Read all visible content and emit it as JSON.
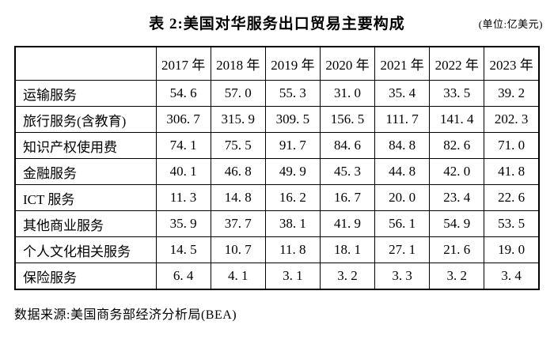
{
  "title": "表 2:美国对华服务出口贸易主要构成",
  "unit": "(单位:亿美元)",
  "source": "数据来源:美国商务部经济分析局(BEA)",
  "chart_data": {
    "type": "table",
    "title": "表 2:美国对华服务出口贸易主要构成",
    "unit_label": "(单位:亿美元)",
    "source_note": "数据来源:美国商务部经济分析局(BEA)",
    "columns": [
      "",
      "2017 年",
      "2018 年",
      "2019 年",
      "2020 年",
      "2021 年",
      "2022 年",
      "2023 年"
    ],
    "rows": [
      {
        "label": "运输服务",
        "values": [
          "54.6",
          "57.0",
          "55.3",
          "31.0",
          "35.4",
          "33.5",
          "39.2"
        ]
      },
      {
        "label": "旅行服务(含教育)",
        "values": [
          "306.7",
          "315.9",
          "309.5",
          "156.5",
          "111.7",
          "141.4",
          "202.3"
        ]
      },
      {
        "label": "知识产权使用费",
        "values": [
          "74.1",
          "75.5",
          "91.7",
          "84.6",
          "84.8",
          "82.6",
          "71.0"
        ]
      },
      {
        "label": "金融服务",
        "values": [
          "40.1",
          "46.8",
          "49.9",
          "45.3",
          "44.8",
          "42.0",
          "41.8"
        ]
      },
      {
        "label": "ICT 服务",
        "values": [
          "11.3",
          "14.8",
          "16.2",
          "16.7",
          "20.0",
          "23.4",
          "22.6"
        ]
      },
      {
        "label": "其他商业服务",
        "values": [
          "35.9",
          "37.7",
          "38.1",
          "41.9",
          "56.1",
          "54.9",
          "53.5"
        ]
      },
      {
        "label": "个人文化相关服务",
        "values": [
          "14.5",
          "10.7",
          "11.8",
          "18.1",
          "27.1",
          "21.6",
          "19.0"
        ]
      },
      {
        "label": "保险服务",
        "values": [
          "6.4",
          "4.1",
          "3.1",
          "3.2",
          "3.3",
          "3.2",
          "3.4"
        ]
      }
    ]
  }
}
